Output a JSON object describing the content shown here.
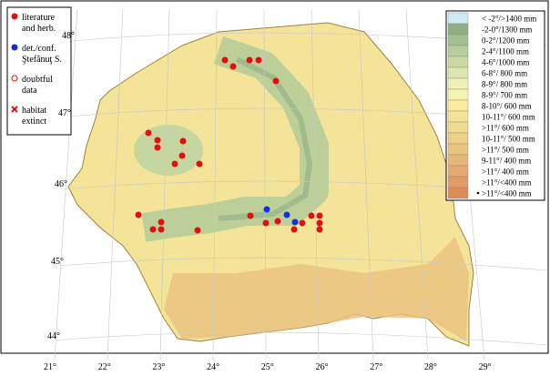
{
  "legend": {
    "items": [
      {
        "lines": [
          "literature",
          "and herb."
        ],
        "color": "#e01010",
        "symbol": "dot"
      },
      {
        "lines": [
          "det./conf.",
          "Ştefănuţ S."
        ],
        "color": "#1030e0",
        "symbol": "dot"
      },
      {
        "lines": [
          "doubtful",
          "data"
        ],
        "color": "#e01010",
        "symbol": "ring"
      },
      {
        "lines": [
          "habitat",
          "extinct"
        ],
        "color": "#e01010",
        "symbol": "cross"
      }
    ]
  },
  "climate_legend": {
    "items": [
      {
        "label": "< -2°/>1400 mm",
        "color": "#cfeaf2"
      },
      {
        "label": "-2-0°/1300 mm",
        "color": "#8fae86"
      },
      {
        "label": "0-2°/1200 mm",
        "color": "#a3bf92"
      },
      {
        "label": "2-4°/1100 mm",
        "color": "#b7cd9c"
      },
      {
        "label": "4-6°/1000 mm",
        "color": "#c9d9a4"
      },
      {
        "label": "6-8°/ 800 mm",
        "color": "#dde6ae"
      },
      {
        "label": "8-9°/ 800 mm",
        "color": "#eef0b8"
      },
      {
        "label": "8-9°/ 700 mm",
        "color": "#f6f2b0"
      },
      {
        "label": "8-10°/ 600 mm",
        "color": "#f8ec9c"
      },
      {
        "label": "10-11°/ 600 mm",
        "color": "#f3e39a"
      },
      {
        "label": ">11°/ 600 mm",
        "color": "#eedb90"
      },
      {
        "label": "10-11°/ 500 mm",
        "color": "#edcf86"
      },
      {
        "label": ">11°/ 500 mm",
        "color": "#e9c47e"
      },
      {
        "label": "9-11°/ 400 mm",
        "color": "#e7b679"
      },
      {
        "label": ">11°/ 400 mm",
        "color": "#e4a873"
      },
      {
        "label": ">11°/<400 mm",
        "color": "#e19a68"
      },
      {
        "label": ">11°/<400 mm",
        "color": "#dd8c56"
      }
    ]
  },
  "graticule": {
    "lat_labels": [
      "48°",
      "47°",
      "46°",
      "45°",
      "44°"
    ],
    "lon_labels": [
      "21°",
      "22°",
      "23°",
      "24°",
      "25°",
      "26°",
      "27°",
      "28°",
      "29°"
    ]
  }
}
